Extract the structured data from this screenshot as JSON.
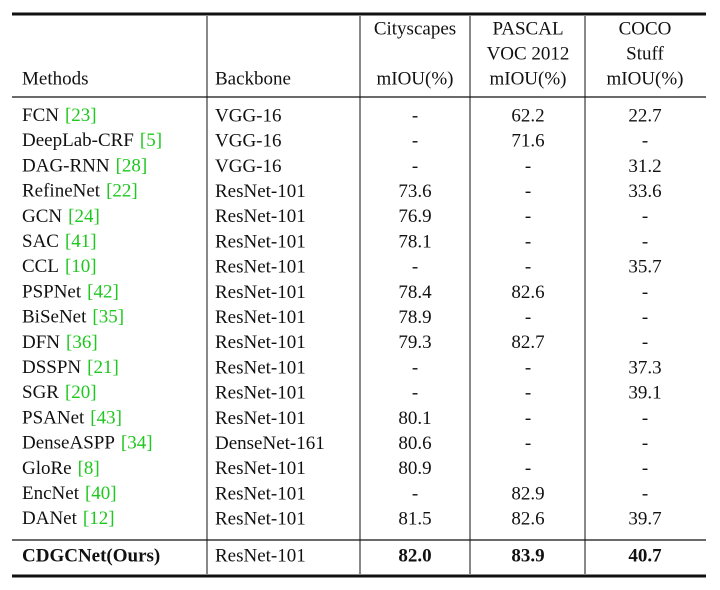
{
  "table": {
    "header": [
      {
        "lines": [
          "Methods"
        ]
      },
      {
        "lines": [
          "Backbone"
        ]
      },
      {
        "lines": [
          "Cityscapes",
          "mIOU(%)"
        ]
      },
      {
        "lines": [
          "PASCAL",
          "VOC 2012",
          "mIOU(%)"
        ]
      },
      {
        "lines": [
          "COCO",
          "Stuff",
          "mIOU(%)"
        ]
      }
    ],
    "rows": [
      {
        "method": "FCN",
        "cite": "[23]",
        "backbone": "VGG-16",
        "values": [
          "-",
          "62.2",
          "22.7"
        ]
      },
      {
        "method": "DeepLab-CRF",
        "cite": "[5]",
        "backbone": "VGG-16",
        "values": [
          "-",
          "71.6",
          "-"
        ]
      },
      {
        "method": "DAG-RNN",
        "cite": "[28]",
        "backbone": "VGG-16",
        "values": [
          "-",
          "-",
          "31.2"
        ]
      },
      {
        "method": "RefineNet",
        "cite": "[22]",
        "backbone": "ResNet-101",
        "values": [
          "73.6",
          "-",
          "33.6"
        ]
      },
      {
        "method": "GCN",
        "cite": "[24]",
        "backbone": "ResNet-101",
        "values": [
          "76.9",
          "-",
          "-"
        ]
      },
      {
        "method": "SAC",
        "cite": "[41]",
        "backbone": "ResNet-101",
        "values": [
          "78.1",
          "-",
          "-"
        ]
      },
      {
        "method": "CCL",
        "cite": "[10]",
        "backbone": "ResNet-101",
        "values": [
          "-",
          "-",
          "35.7"
        ]
      },
      {
        "method": "PSPNet",
        "cite": "[42]",
        "backbone": "ResNet-101",
        "values": [
          "78.4",
          "82.6",
          "-"
        ]
      },
      {
        "method": "BiSeNet",
        "cite": "[35]",
        "backbone": "ResNet-101",
        "values": [
          "78.9",
          "-",
          "-"
        ]
      },
      {
        "method": "DFN",
        "cite": "[36]",
        "backbone": "ResNet-101",
        "values": [
          "79.3",
          "82.7",
          "-"
        ]
      },
      {
        "method": "DSSPN",
        "cite": "[21]",
        "backbone": "ResNet-101",
        "values": [
          "-",
          "-",
          "37.3"
        ]
      },
      {
        "method": "SGR",
        "cite": "[20]",
        "backbone": "ResNet-101",
        "values": [
          "-",
          "-",
          "39.1"
        ]
      },
      {
        "method": "PSANet",
        "cite": "[43]",
        "backbone": "ResNet-101",
        "values": [
          "80.1",
          "-",
          "-"
        ]
      },
      {
        "method": "DenseASPP",
        "cite": "[34]",
        "backbone": "DenseNet-161",
        "values": [
          "80.6",
          "-",
          "-"
        ]
      },
      {
        "method": "GloRe",
        "cite": "[8]",
        "backbone": "ResNet-101",
        "values": [
          "80.9",
          "-",
          "-"
        ]
      },
      {
        "method": "EncNet",
        "cite": "[40]",
        "backbone": "ResNet-101",
        "values": [
          "-",
          "82.9",
          "-"
        ]
      },
      {
        "method": "DANet",
        "cite": "[12]",
        "backbone": "ResNet-101",
        "values": [
          "81.5",
          "82.6",
          "39.7"
        ]
      }
    ],
    "ours": {
      "method": "CDGCNet(Ours)",
      "backbone": "ResNet-101",
      "values": [
        "82.0",
        "83.9",
        "40.7"
      ]
    }
  }
}
